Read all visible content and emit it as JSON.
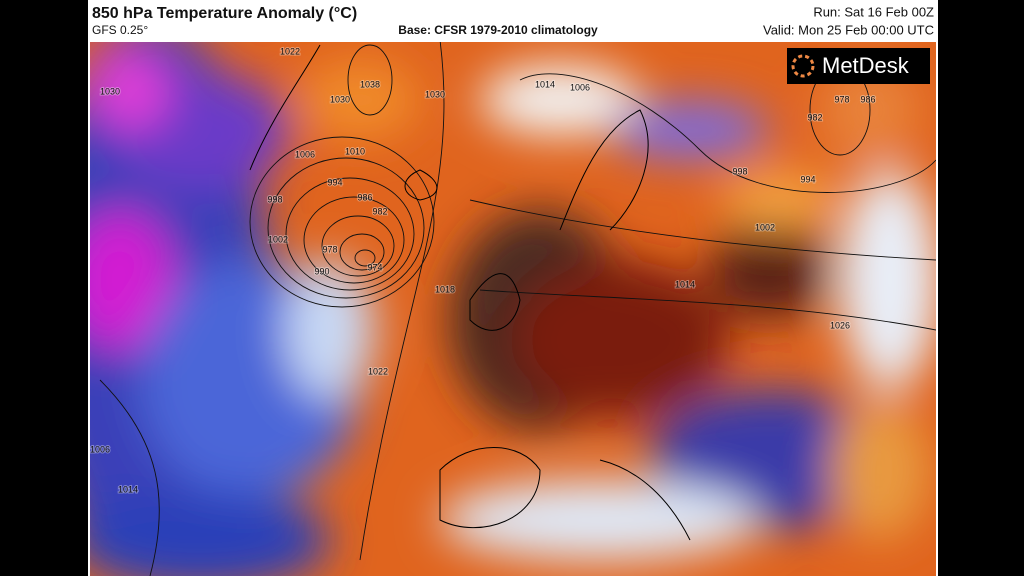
{
  "header": {
    "title": "850 hPa Temperature Anomaly (°C)",
    "model": "GFS 0.25°",
    "base": "Base: CFSR 1979-2010 climatology",
    "run": "Run: Sat 16 Feb 00Z",
    "valid": "Valid: Mon 25 Feb 00:00 UTC"
  },
  "logo": "MetDesk",
  "isobar_labels": [
    "1022",
    "1030",
    "1030",
    "1038",
    "1030",
    "1014",
    "1006",
    "982",
    "978",
    "986",
    "1006",
    "1010",
    "994",
    "986",
    "982",
    "978",
    "974",
    "990",
    "998",
    "1002",
    "1018",
    "1022",
    "1006",
    "1014",
    "998",
    "994",
    "1002",
    "1014",
    "1026"
  ]
}
